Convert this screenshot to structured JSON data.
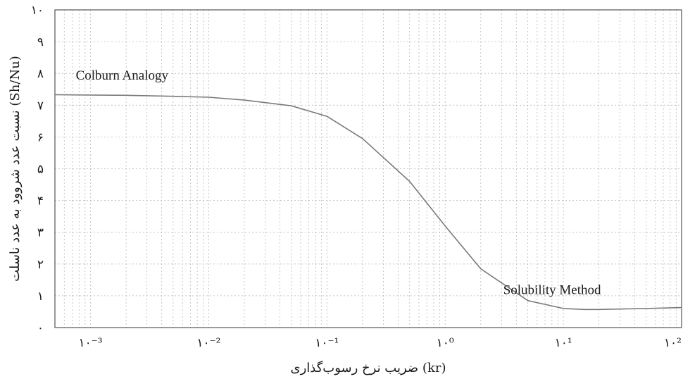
{
  "chart_data": {
    "type": "line",
    "title": "",
    "xlabel": "(kr) ضریب نرخ رسوب‌گذاری",
    "ylabel": "(Sh/Nu) نسبت عدد شروود به عدد ناسلت",
    "x_scale": "log",
    "xlim": [
      0.0005,
      100
    ],
    "ylim": [
      0,
      10
    ],
    "grid": true,
    "x_ticks": [
      {
        "value": 0.001,
        "label": "۱۰⁻³"
      },
      {
        "value": 0.01,
        "label": "۱۰⁻²"
      },
      {
        "value": 0.1,
        "label": "۱۰⁻¹"
      },
      {
        "value": 1,
        "label": "۱۰⁰"
      },
      {
        "value": 10,
        "label": "۱۰¹"
      },
      {
        "value": 100,
        "label": "۱۰²"
      }
    ],
    "y_ticks": [
      {
        "value": 0,
        "label": "۰"
      },
      {
        "value": 1,
        "label": "۱"
      },
      {
        "value": 2,
        "label": "۲"
      },
      {
        "value": 3,
        "label": "۳"
      },
      {
        "value": 4,
        "label": "۴"
      },
      {
        "value": 5,
        "label": "۵"
      },
      {
        "value": 6,
        "label": "۶"
      },
      {
        "value": 7,
        "label": "۷"
      },
      {
        "value": 8,
        "label": "۸"
      },
      {
        "value": 9,
        "label": "۹"
      },
      {
        "value": 10,
        "label": "۱۰"
      }
    ],
    "series": [
      {
        "color": "#7a7a7a",
        "x": [
          0.0005,
          0.001,
          0.002,
          0.005,
          0.01,
          0.02,
          0.05,
          0.1,
          0.2,
          0.5,
          1,
          2,
          5,
          10,
          15,
          20,
          50,
          100
        ],
        "y": [
          7.33,
          7.32,
          7.31,
          7.28,
          7.25,
          7.16,
          6.98,
          6.65,
          5.95,
          4.6,
          3.2,
          1.85,
          0.85,
          0.6,
          0.57,
          0.57,
          0.6,
          0.63
        ]
      }
    ],
    "annotations": [
      {
        "text": "Colburn Analogy",
        "x": 0.00075,
        "y": 7.8
      },
      {
        "text": "Solubility Method",
        "x": 3.1,
        "y": 1.05
      }
    ]
  }
}
